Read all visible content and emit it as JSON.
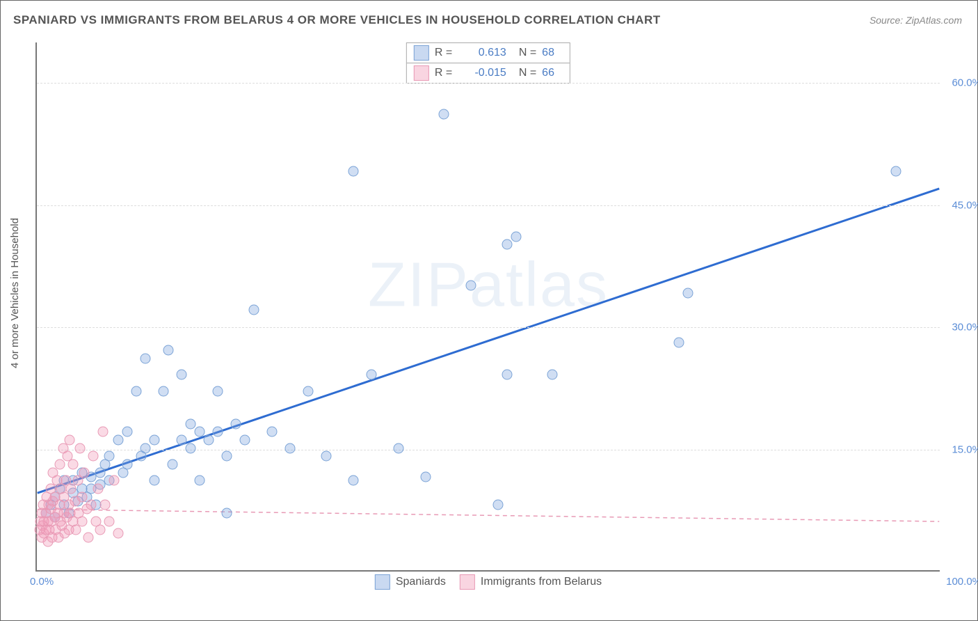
{
  "title": "SPANIARD VS IMMIGRANTS FROM BELARUS 4 OR MORE VEHICLES IN HOUSEHOLD CORRELATION CHART",
  "source": "Source: ZipAtlas.com",
  "y_axis_label": "4 or more Vehicles in Household",
  "watermark": "ZIPatlas",
  "chart": {
    "type": "scatter",
    "xlim": [
      0,
      100
    ],
    "ylim": [
      0,
      65
    ],
    "y_ticks": [
      15,
      30,
      45,
      60
    ],
    "y_tick_labels": [
      "15.0%",
      "30.0%",
      "45.0%",
      "60.0%"
    ],
    "x_tick_left": "0.0%",
    "x_tick_right": "100.0%",
    "grid_color": "#dddddd",
    "axis_color": "#777777",
    "background_color": "#ffffff",
    "marker_size": 15,
    "series": [
      {
        "name": "Spaniards",
        "color_fill": "rgba(120,160,220,0.35)",
        "color_stroke": "#7ba3d6",
        "r_value": "0.613",
        "n_value": "68",
        "regression": {
          "x1": 0,
          "y1": 9.5,
          "x2": 100,
          "y2": 47,
          "stroke": "#2e6cd1",
          "width": 3,
          "dash": ""
        },
        "points": [
          [
            1,
            7
          ],
          [
            1.5,
            8
          ],
          [
            2,
            6.5
          ],
          [
            2,
            9
          ],
          [
            2.5,
            10
          ],
          [
            3,
            8
          ],
          [
            3,
            11
          ],
          [
            3.5,
            7
          ],
          [
            4,
            9.5
          ],
          [
            4,
            11
          ],
          [
            4.5,
            8.5
          ],
          [
            5,
            10
          ],
          [
            5,
            12
          ],
          [
            5.5,
            9
          ],
          [
            6,
            11.5
          ],
          [
            6,
            10
          ],
          [
            6.5,
            8
          ],
          [
            7,
            12
          ],
          [
            7,
            10.5
          ],
          [
            7.5,
            13
          ],
          [
            8,
            11
          ],
          [
            8,
            14
          ],
          [
            9,
            16
          ],
          [
            9.5,
            12
          ],
          [
            10,
            17
          ],
          [
            10,
            13
          ],
          [
            11,
            22
          ],
          [
            11.5,
            14
          ],
          [
            12,
            26
          ],
          [
            12,
            15
          ],
          [
            13,
            11
          ],
          [
            13,
            16
          ],
          [
            14,
            22
          ],
          [
            14.5,
            27
          ],
          [
            15,
            13
          ],
          [
            16,
            24
          ],
          [
            16,
            16
          ],
          [
            17,
            18
          ],
          [
            17,
            15
          ],
          [
            18,
            11
          ],
          [
            18,
            17
          ],
          [
            19,
            16
          ],
          [
            20,
            17
          ],
          [
            20,
            22
          ],
          [
            21,
            14
          ],
          [
            21,
            7
          ],
          [
            22,
            18
          ],
          [
            23,
            16
          ],
          [
            24,
            32
          ],
          [
            26,
            17
          ],
          [
            28,
            15
          ],
          [
            30,
            22
          ],
          [
            32,
            14
          ],
          [
            35,
            11
          ],
          [
            35,
            49
          ],
          [
            37,
            24
          ],
          [
            40,
            15
          ],
          [
            43,
            11.5
          ],
          [
            45,
            56
          ],
          [
            48,
            35
          ],
          [
            51,
            8
          ],
          [
            52,
            24
          ],
          [
            52,
            40
          ],
          [
            53,
            41
          ],
          [
            57,
            24
          ],
          [
            71,
            28
          ],
          [
            72,
            34
          ],
          [
            95,
            49
          ]
        ]
      },
      {
        "name": "Immigrants from Belarus",
        "color_fill": "rgba(240,150,180,0.35)",
        "color_stroke": "#e89ab5",
        "r_value": "-0.015",
        "n_value": "66",
        "regression": {
          "x1": 0,
          "y1": 7.5,
          "x2": 100,
          "y2": 6.0,
          "stroke": "#e89ab5",
          "width": 1.5,
          "dash": "6,5"
        },
        "points": [
          [
            0.3,
            5
          ],
          [
            0.4,
            6
          ],
          [
            0.5,
            4
          ],
          [
            0.5,
            7
          ],
          [
            0.6,
            5.5
          ],
          [
            0.7,
            8
          ],
          [
            0.8,
            6
          ],
          [
            0.8,
            4.5
          ],
          [
            1,
            7
          ],
          [
            1,
            5
          ],
          [
            1.1,
            9
          ],
          [
            1.2,
            6
          ],
          [
            1.2,
            3.5
          ],
          [
            1.3,
            8
          ],
          [
            1.4,
            5
          ],
          [
            1.5,
            7.5
          ],
          [
            1.5,
            10
          ],
          [
            1.6,
            6
          ],
          [
            1.7,
            4
          ],
          [
            1.8,
            8.5
          ],
          [
            1.8,
            12
          ],
          [
            2,
            6.5
          ],
          [
            2,
            9
          ],
          [
            2.1,
            5
          ],
          [
            2.2,
            11
          ],
          [
            2.3,
            7
          ],
          [
            2.4,
            4
          ],
          [
            2.5,
            8
          ],
          [
            2.5,
            13
          ],
          [
            2.6,
            6
          ],
          [
            2.7,
            10
          ],
          [
            2.8,
            5.5
          ],
          [
            2.9,
            15
          ],
          [
            3,
            7
          ],
          [
            3,
            9
          ],
          [
            3.1,
            4.5
          ],
          [
            3.2,
            11
          ],
          [
            3.3,
            6.5
          ],
          [
            3.4,
            14
          ],
          [
            3.5,
            8
          ],
          [
            3.5,
            5
          ],
          [
            3.6,
            16
          ],
          [
            3.7,
            7
          ],
          [
            3.8,
            10
          ],
          [
            4,
            6
          ],
          [
            4,
            13
          ],
          [
            4.2,
            8.5
          ],
          [
            4.3,
            5
          ],
          [
            4.5,
            11
          ],
          [
            4.6,
            7
          ],
          [
            4.8,
            15
          ],
          [
            5,
            6
          ],
          [
            5,
            9
          ],
          [
            5.2,
            12
          ],
          [
            5.5,
            7.5
          ],
          [
            5.7,
            4
          ],
          [
            6,
            8
          ],
          [
            6.2,
            14
          ],
          [
            6.5,
            6
          ],
          [
            6.8,
            10
          ],
          [
            7,
            5
          ],
          [
            7.3,
            17
          ],
          [
            7.5,
            8
          ],
          [
            8,
            6
          ],
          [
            8.5,
            11
          ],
          [
            9,
            4.5
          ]
        ]
      }
    ]
  },
  "stat_legend": {
    "r_label": "R =",
    "n_label": "N ="
  },
  "series_legend": {
    "s1": "Spaniards",
    "s2": "Immigrants from Belarus"
  }
}
